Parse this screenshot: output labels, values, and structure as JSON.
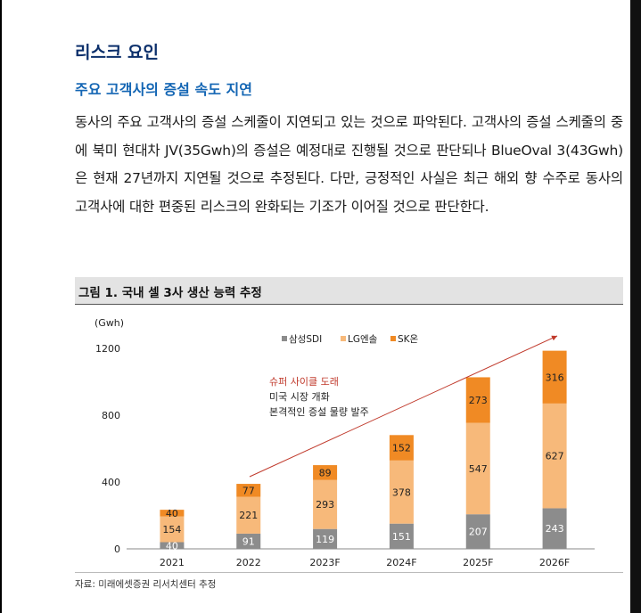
{
  "heading": "리스크 요인",
  "subheading": "주요 고객사의 증설 속도 지연",
  "paragraph": "동사의 주요 고객사의 증설 스케줄이 지연되고 있는 것으로 파악된다. 고객사의 증설 스케줄의 중에 북미 현대차 JV(35Gwh)의 증설은 예정대로 진행될 것으로 판단되나 BlueOval 3(43Gwh)은 현재 27년까지 지연될 것으로 추정된다. 다만, 긍정적인 사실은 최근 해외 향 수주로 동사의 고객사에 대한 편중된 리스크의 완화되는 기조가 이어질 것으로 판단한다.",
  "figure": {
    "title": "그림 1. 국내 셀 3사 생산 능력 추정",
    "source": "자료: 미래에셋증권 리서치센터 추정"
  },
  "chart_data": {
    "type": "bar",
    "stacked": true,
    "ylabel": "(Gwh)",
    "ylim": [
      0,
      1200
    ],
    "yticks": [
      0,
      400,
      800,
      1200
    ],
    "categories": [
      "2021",
      "2022",
      "2023F",
      "2024F",
      "2025F",
      "2026F"
    ],
    "series": [
      {
        "name": "삼성SDI",
        "color": "#8c8c8c",
        "values": [
          40,
          91,
          119,
          151,
          207,
          243
        ]
      },
      {
        "name": "LG엔솔",
        "color": "#f7b97a",
        "values": [
          154,
          221,
          293,
          378,
          547,
          627
        ]
      },
      {
        "name": "SK온",
        "color": "#f08a24",
        "values": [
          40,
          77,
          89,
          152,
          273,
          316
        ]
      }
    ],
    "legend_position": "top-center",
    "annotation": {
      "line1": "슈퍼 사이클 도래",
      "line2": "미국 시장 개화",
      "line3": "본격적인 증설 물량 발주",
      "line1_color": "#c0392b",
      "text_color": "#222"
    },
    "trend_arrow_color": "#c0392b"
  }
}
